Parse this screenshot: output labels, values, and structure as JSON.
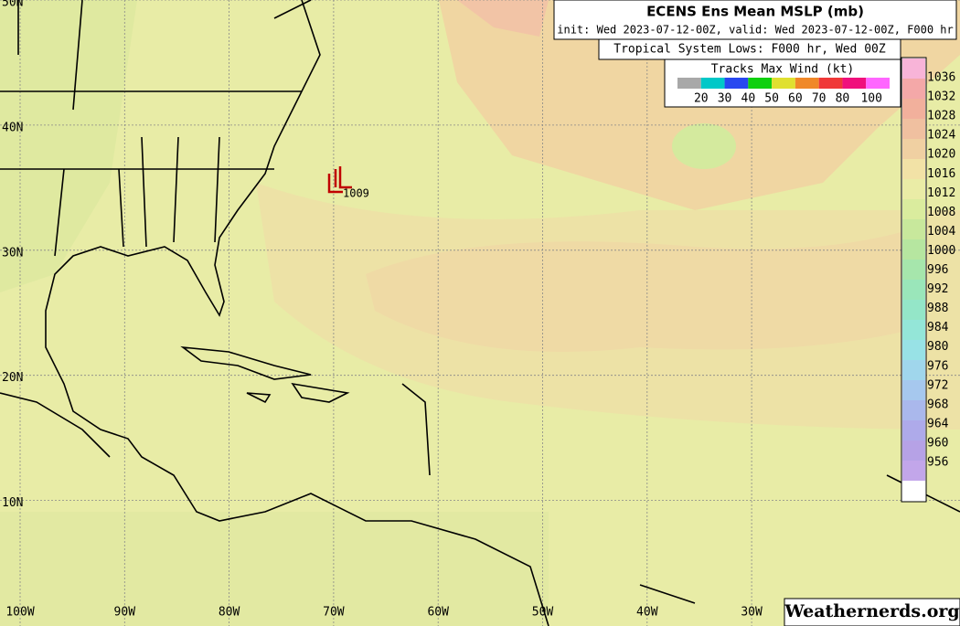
{
  "header": {
    "title": "ECENS Ens Mean MSLP (mb)",
    "subtitle": "init: Wed 2023-07-12-00Z, valid: Wed 2023-07-12-00Z, F000 hr"
  },
  "lows_legend": {
    "title": "Tropical System Lows: F000 hr, Wed 00Z",
    "wind_title": "Tracks Max Wind (kt)",
    "wind_labels": [
      "20",
      "30",
      "40",
      "50",
      "60",
      "70",
      "80",
      "100"
    ],
    "wind_colors": [
      "#a8a8a8",
      "#00c8c8",
      "#2848f0",
      "#10d010",
      "#e0e030",
      "#f08828",
      "#f03838",
      "#f0107c",
      "#ff66ff"
    ]
  },
  "colorbar": {
    "labels": [
      "1036",
      "1032",
      "1028",
      "1024",
      "1020",
      "1016",
      "1012",
      "1008",
      "1004",
      "1000",
      "996",
      "992",
      "988",
      "984",
      "980",
      "976",
      "972",
      "968",
      "964",
      "960",
      "956"
    ],
    "colors": [
      "#f8b4d8",
      "#f4a8a8",
      "#f2b09c",
      "#f0c0a0",
      "#f0d0a2",
      "#f2e2a6",
      "#eaeca6",
      "#daec9e",
      "#c8e89c",
      "#b6e6a0",
      "#a6e6ac",
      "#9ae6ba",
      "#94e6c8",
      "#94e6d8",
      "#98e2e6",
      "#a0d6ec",
      "#a6c8ee",
      "#aab8ec",
      "#aeaaea",
      "#b6a2e6",
      "#c2a6ea"
    ]
  },
  "grid": {
    "lat_labels": [
      "50N",
      "40N",
      "30N",
      "20N",
      "10N"
    ],
    "lon_labels": [
      "100W",
      "90W",
      "80W",
      "70W",
      "60W",
      "50W",
      "40W",
      "30W"
    ]
  },
  "storm_label": "1009",
  "watermark": "Weathernerds.org"
}
